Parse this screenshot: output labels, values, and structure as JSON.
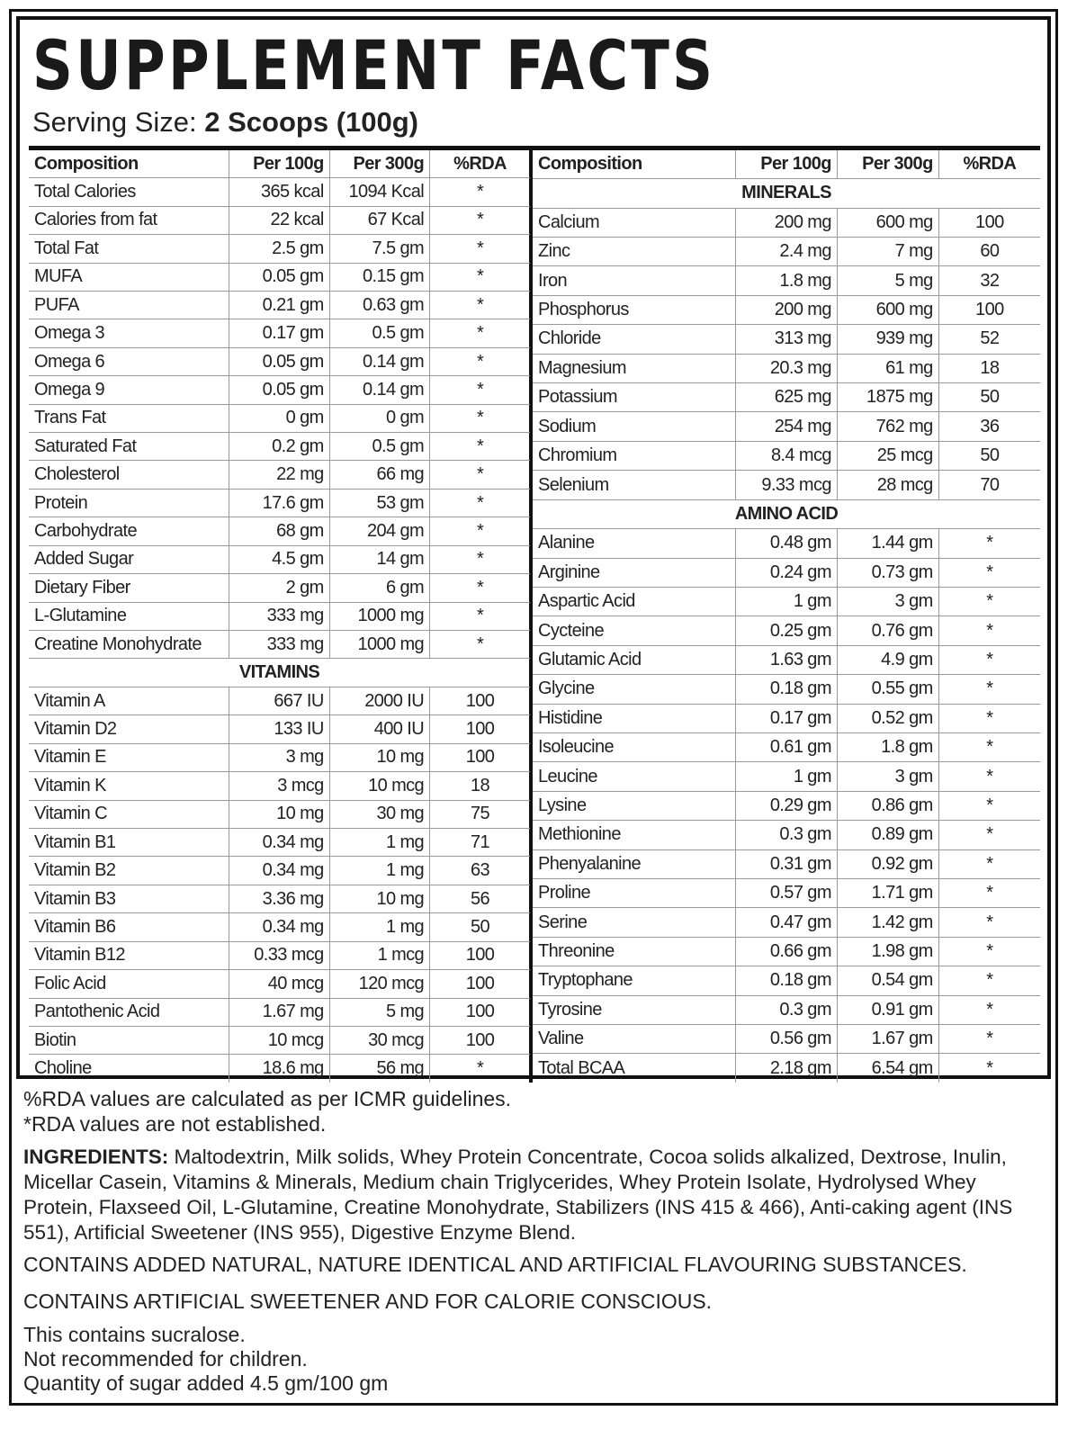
{
  "title": "SUPPLEMENT FACTS",
  "serving_label": "Serving Size:",
  "serving_value": "2 Scoops (100g)",
  "headers": [
    "Composition",
    "Per 100g",
    "Per 300g",
    "%RDA"
  ],
  "left_rows": [
    [
      "Total Calories",
      "365 kcal",
      "1094 Kcal",
      "*"
    ],
    [
      "Calories from fat",
      "22 kcal",
      "67 Kcal",
      "*"
    ],
    [
      "Total Fat",
      "2.5 gm",
      "7.5 gm",
      "*"
    ],
    [
      "MUFA",
      "0.05 gm",
      "0.15 gm",
      "*"
    ],
    [
      "PUFA",
      "0.21 gm",
      "0.63 gm",
      "*"
    ],
    [
      "Omega 3",
      "0.17 gm",
      "0.5 gm",
      "*"
    ],
    [
      "Omega 6",
      "0.05 gm",
      "0.14 gm",
      "*"
    ],
    [
      "Omega 9",
      "0.05 gm",
      "0.14 gm",
      "*"
    ],
    [
      "Trans Fat",
      "0 gm",
      "0 gm",
      "*"
    ],
    [
      "Saturated Fat",
      "0.2 gm",
      "0.5 gm",
      "*"
    ],
    [
      "Cholesterol",
      "22 mg",
      "66 mg",
      "*"
    ],
    [
      "Protein",
      "17.6 gm",
      "53 gm",
      "*"
    ],
    [
      "Carbohydrate",
      "68 gm",
      "204 gm",
      "*"
    ],
    [
      "Added Sugar",
      "4.5 gm",
      "14 gm",
      "*"
    ],
    [
      "Dietary Fiber",
      "2 gm",
      "6 gm",
      "*"
    ],
    [
      "L-Glutamine",
      "333 mg",
      "1000 mg",
      "*"
    ],
    [
      "Creatine Monohydrate",
      "333 mg",
      "1000 mg",
      "*"
    ]
  ],
  "vitamins_label": "VITAMINS",
  "vitamins": [
    [
      "Vitamin A",
      "667 IU",
      "2000 IU",
      "100"
    ],
    [
      "Vitamin D2",
      "133 IU",
      "400 IU",
      "100"
    ],
    [
      "Vitamin E",
      "3 mg",
      "10 mg",
      "100"
    ],
    [
      "Vitamin K",
      "3 mcg",
      "10 mcg",
      "18"
    ],
    [
      "Vitamin C",
      "10 mg",
      "30 mg",
      "75"
    ],
    [
      "Vitamin B1",
      "0.34 mg",
      "1 mg",
      "71"
    ],
    [
      "Vitamin B2",
      "0.34 mg",
      "1 mg",
      "63"
    ],
    [
      "Vitamin B3",
      "3.36 mg",
      "10 mg",
      "56"
    ],
    [
      "Vitamin B6",
      "0.34 mg",
      "1 mg",
      "50"
    ],
    [
      "Vitamin B12",
      "0.33 mcg",
      "1 mcg",
      "100"
    ],
    [
      "Folic Acid",
      "40 mcg",
      "120 mcg",
      "100"
    ],
    [
      "Pantothenic Acid",
      "1.67 mg",
      "5 mg",
      "100"
    ],
    [
      "Biotin",
      "10 mcg",
      "30 mcg",
      "100"
    ],
    [
      "Choline",
      "18.6 mg",
      "56 mg",
      "*"
    ]
  ],
  "minerals_label": "MINERALS",
  "minerals": [
    [
      "Calcium",
      "200 mg",
      "600 mg",
      "100"
    ],
    [
      "Zinc",
      "2.4 mg",
      "7 mg",
      "60"
    ],
    [
      "Iron",
      "1.8 mg",
      "5 mg",
      "32"
    ],
    [
      "Phosphorus",
      "200 mg",
      "600 mg",
      "100"
    ],
    [
      "Chloride",
      "313 mg",
      "939 mg",
      "52"
    ],
    [
      "Magnesium",
      "20.3 mg",
      "61 mg",
      "18"
    ],
    [
      "Potassium",
      "625 mg",
      "1875 mg",
      "50"
    ],
    [
      "Sodium",
      "254 mg",
      "762 mg",
      "36"
    ],
    [
      "Chromium",
      "8.4 mcg",
      "25 mcg",
      "50"
    ],
    [
      "Selenium",
      "9.33 mcg",
      "28 mcg",
      "70"
    ]
  ],
  "amino_label": "AMINO ACID",
  "amino": [
    [
      "Alanine",
      "0.48 gm",
      "1.44 gm",
      "*"
    ],
    [
      "Arginine",
      "0.24 gm",
      "0.73 gm",
      "*"
    ],
    [
      "Aspartic Acid",
      "1 gm",
      "3 gm",
      "*"
    ],
    [
      "Cycteine",
      "0.25 gm",
      "0.76 gm",
      "*"
    ],
    [
      "Glutamic Acid",
      "1.63 gm",
      "4.9 gm",
      "*"
    ],
    [
      "Glycine",
      "0.18 gm",
      "0.55 gm",
      "*"
    ],
    [
      "Histidine",
      "0.17 gm",
      "0.52 gm",
      "*"
    ],
    [
      "Isoleucine",
      "0.61 gm",
      "1.8 gm",
      "*"
    ],
    [
      "Leucine",
      "1 gm",
      "3 gm",
      "*"
    ],
    [
      "Lysine",
      "0.29 gm",
      "0.86 gm",
      "*"
    ],
    [
      "Methionine",
      "0.3 gm",
      "0.89 gm",
      "*"
    ],
    [
      "Phenyalanine",
      "0.31 gm",
      "0.92 gm",
      "*"
    ],
    [
      "Proline",
      "0.57 gm",
      "1.71 gm",
      "*"
    ],
    [
      "Serine",
      "0.47 gm",
      "1.42 gm",
      "*"
    ],
    [
      "Threonine",
      "0.66 gm",
      "1.98 gm",
      "*"
    ],
    [
      "Tryptophane",
      "0.18 gm",
      "0.54 gm",
      "*"
    ],
    [
      "Tyrosine",
      "0.3 gm",
      "0.91 gm",
      "*"
    ],
    [
      "Valine",
      "0.56 gm",
      "1.67 gm",
      "*"
    ],
    [
      "Total BCAA",
      "2.18 gm",
      "6.54 gm",
      "*"
    ]
  ],
  "footer": {
    "rda_note": "%RDA values are calculated as per ICMR guidelines.",
    "rda_na": "*RDA values are not established.",
    "ingredients_label": "INGREDIENTS:",
    "ingredients": " Maltodextrin, Milk solids, Whey Protein Concentrate, Cocoa solids alkalized, Dextrose, Inulin, Micellar Casein, Vitamins & Minerals, Medium chain Triglycerides, Whey Protein Isolate, Hydrolysed Whey Protein, Flaxseed Oil, L-Glutamine, Creatine Monohydrate, Stabilizers (INS 415 & 466), Anti-caking agent (INS 551), Artificial Sweetener (INS 955), Digestive Enzyme Blend.",
    "flavour": "CONTAINS ADDED NATURAL, NATURE IDENTICAL AND ARTIFICIAL FLAVOURING SUBSTANCES.",
    "sweetener": "CONTAINS ARTIFICIAL SWEETENER AND FOR CALORIE CONSCIOUS.",
    "sucralose": "This contains sucralose.",
    "children": "Not recommended for children.",
    "sugar": "Quantity of sugar added 4.5 gm/100 gm"
  }
}
